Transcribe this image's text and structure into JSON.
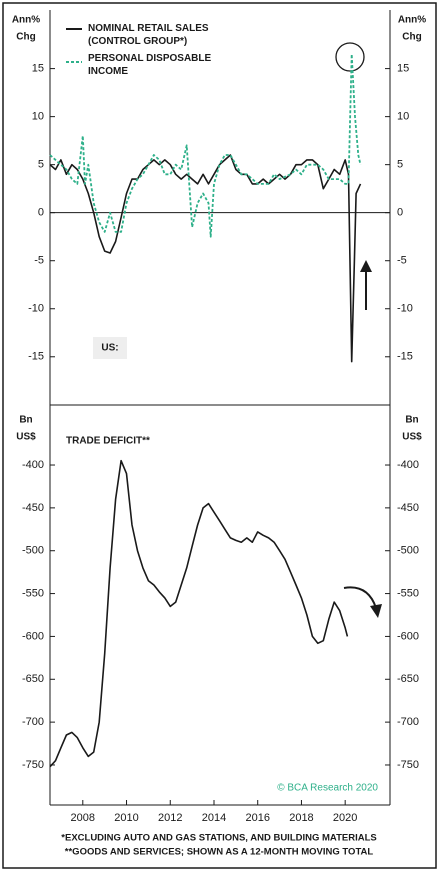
{
  "chart_data": [
    {
      "type": "line",
      "y_label": [
        "Ann%",
        "Chg"
      ],
      "label": "US:",
      "xlim": [
        2006.5,
        2022.05
      ],
      "ylim": [
        -19.5,
        21.1
      ],
      "yticks": [
        -15,
        -10,
        -5,
        0,
        5,
        10,
        15
      ],
      "series": [
        {
          "name": "NOMINAL RETAIL SALES (CONTROL GROUP*)",
          "color": "#1a1a1a",
          "dashed": false,
          "x": [
            2006.5,
            2006.75,
            2007,
            2007.25,
            2007.5,
            2007.75,
            2008,
            2008.25,
            2008.5,
            2008.75,
            2009,
            2009.25,
            2009.5,
            2009.75,
            2010,
            2010.25,
            2010.5,
            2010.75,
            2011,
            2011.25,
            2011.5,
            2011.75,
            2012,
            2012.25,
            2012.5,
            2012.75,
            2013,
            2013.25,
            2013.5,
            2013.75,
            2014,
            2014.25,
            2014.5,
            2014.75,
            2015,
            2015.25,
            2015.5,
            2015.75,
            2016,
            2016.25,
            2016.5,
            2016.75,
            2017,
            2017.25,
            2017.5,
            2017.75,
            2018,
            2018.25,
            2018.5,
            2018.75,
            2019,
            2019.25,
            2019.5,
            2019.75,
            2020,
            2020.15,
            2020.3,
            2020.42,
            2020.5,
            2020.7
          ],
          "values": [
            5,
            4.5,
            5.5,
            4,
            5,
            4.5,
            3.5,
            2,
            0,
            -2.5,
            -4,
            -4.2,
            -3,
            -0.5,
            2,
            3.5,
            3.5,
            4.5,
            5,
            5.5,
            5,
            5.5,
            5,
            4,
            3.5,
            4,
            3.5,
            3,
            4,
            3,
            4,
            5,
            5.5,
            6,
            4.5,
            4,
            4,
            3,
            3,
            3.5,
            3,
            3.5,
            4,
            3.5,
            4,
            5,
            5,
            5.5,
            5.5,
            5,
            2.5,
            3.5,
            4.5,
            4,
            5.5,
            4,
            -15.5,
            -5,
            2,
            3
          ]
        },
        {
          "name": "PERSONAL DISPOSABLE INCOME",
          "color": "#2eb08a",
          "dashed": true,
          "x": [
            2006.5,
            2007,
            2007.25,
            2007.5,
            2007.75,
            2008,
            2008.1,
            2008.25,
            2008.5,
            2008.75,
            2009,
            2009.25,
            2009.5,
            2009.75,
            2010,
            2010.25,
            2010.5,
            2010.75,
            2011,
            2011.25,
            2011.5,
            2011.75,
            2012,
            2012.25,
            2012.5,
            2012.75,
            2013,
            2013.25,
            2013.5,
            2013.75,
            2013.85,
            2014,
            2014.25,
            2014.5,
            2014.75,
            2015,
            2015.25,
            2015.5,
            2015.75,
            2016,
            2016.5,
            2016.75,
            2017,
            2017.5,
            2017.75,
            2018,
            2018.25,
            2018.5,
            2018.75,
            2019,
            2019.25,
            2019.5,
            2019.75,
            2020,
            2020.15,
            2020.3,
            2020.45,
            2020.6,
            2020.7
          ],
          "values": [
            6,
            5,
            4.5,
            3.5,
            3,
            8,
            3,
            5,
            1,
            -1,
            -2,
            0,
            -2,
            -2,
            1,
            2.5,
            3.5,
            4,
            5,
            6,
            5.5,
            4,
            4,
            5,
            4.5,
            7,
            -1.5,
            1,
            2,
            1,
            -2.5,
            3,
            5,
            6,
            6,
            5,
            4,
            4,
            3.5,
            3,
            3,
            4,
            3.5,
            4,
            4.5,
            4,
            5,
            5,
            5,
            4.5,
            3.5,
            3.5,
            3.5,
            3,
            3,
            16.5,
            10,
            6,
            5
          ]
        }
      ]
    },
    {
      "type": "line",
      "y_label": [
        "Bn",
        "US$"
      ],
      "title": "TRADE DEFICIT**",
      "source": "© BCA Research 2020",
      "xlim": [
        2006.5,
        2022.05
      ],
      "xticks": [
        2008,
        2010,
        2012,
        2014,
        2016,
        2018,
        2020
      ],
      "ylim": [
        -796.7,
        -335.8
      ],
      "yticks": [
        -750,
        -700,
        -650,
        -600,
        -550,
        -500,
        -450,
        -400
      ],
      "series": [
        {
          "color": "#1a1a1a",
          "dashed": false,
          "x": [
            2006.5,
            2006.75,
            2007,
            2007.25,
            2007.5,
            2007.75,
            2008,
            2008.25,
            2008.5,
            2008.75,
            2009,
            2009.25,
            2009.5,
            2009.75,
            2010,
            2010.25,
            2010.5,
            2010.75,
            2011,
            2011.25,
            2011.5,
            2011.75,
            2012,
            2012.25,
            2012.5,
            2012.75,
            2013,
            2013.25,
            2013.5,
            2013.75,
            2014,
            2014.25,
            2014.5,
            2014.75,
            2015,
            2015.25,
            2015.5,
            2015.75,
            2016,
            2016.25,
            2016.5,
            2016.75,
            2017,
            2017.25,
            2017.5,
            2017.75,
            2018,
            2018.25,
            2018.5,
            2018.75,
            2019,
            2019.25,
            2019.5,
            2019.75,
            2020,
            2020.1
          ],
          "values": [
            -752,
            -745,
            -730,
            -715,
            -712,
            -718,
            -730,
            -740,
            -735,
            -700,
            -620,
            -520,
            -440,
            -395,
            -410,
            -470,
            -500,
            -520,
            -535,
            -540,
            -548,
            -555,
            -565,
            -560,
            -540,
            -520,
            -495,
            -470,
            -450,
            -445,
            -455,
            -465,
            -475,
            -485,
            -488,
            -490,
            -485,
            -490,
            -478,
            -482,
            -485,
            -490,
            -500,
            -510,
            -525,
            -540,
            -555,
            -575,
            -600,
            -608,
            -605,
            -580,
            -560,
            -570,
            -590,
            -600
          ]
        }
      ]
    }
  ],
  "footnotes": [
    "*EXCLUDING AUTO AND GAS STATIONS, AND BUILDING MATERIALS",
    "**GOODS AND SERVICES; SHOWN AS A 12-MONTH MOVING TOTAL"
  ]
}
